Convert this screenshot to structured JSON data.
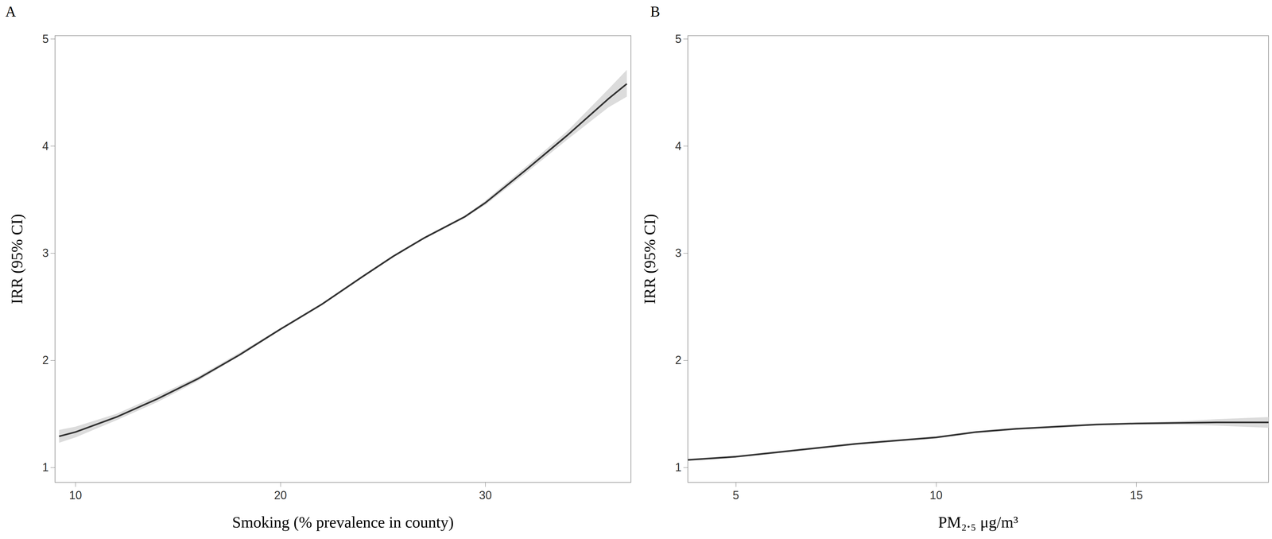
{
  "chart_data": [
    {
      "type": "line",
      "title": "A",
      "x_label": "Smoking (% prevalence in county)",
      "y_label": "IRR (95% CI)",
      "xlim": [
        9.0,
        37.1
      ],
      "xticks": [
        10,
        20,
        30
      ],
      "ylim": [
        0.86,
        5.03
      ],
      "yticks": [
        1,
        2,
        3,
        4,
        5
      ],
      "grid": false,
      "series": [
        {
          "name": "IRR",
          "color": "#333333",
          "x": [
            9.2,
            10,
            12,
            14,
            16,
            18,
            20,
            22,
            24,
            25.5,
            27,
            29,
            30,
            32,
            34,
            36,
            36.9
          ],
          "values": [
            1.29,
            1.33,
            1.47,
            1.64,
            1.83,
            2.05,
            2.29,
            2.52,
            2.78,
            2.97,
            3.14,
            3.34,
            3.47,
            3.78,
            4.1,
            4.44,
            4.58
          ],
          "ci_lower": [
            1.23,
            1.28,
            1.44,
            1.61,
            1.81,
            2.04,
            2.28,
            2.51,
            2.77,
            2.96,
            3.13,
            3.33,
            3.45,
            3.75,
            4.06,
            4.36,
            4.46
          ],
          "ci_upper": [
            1.35,
            1.38,
            1.5,
            1.67,
            1.85,
            2.07,
            2.3,
            2.53,
            2.79,
            2.98,
            3.15,
            3.35,
            3.49,
            3.81,
            4.14,
            4.53,
            4.71
          ],
          "ci_color": "#dcdcdc"
        }
      ]
    },
    {
      "type": "line",
      "title": "B",
      "x_label": "PM₂.₅ μg/m³",
      "y_label": "IRR (95% CI)",
      "xlim": [
        3.8,
        18.3
      ],
      "xticks": [
        5,
        10,
        15
      ],
      "ylim": [
        0.86,
        5.03
      ],
      "yticks": [
        1,
        2,
        3,
        4,
        5
      ],
      "grid": false,
      "series": [
        {
          "name": "IRR",
          "color": "#333333",
          "x": [
            3.8,
            5,
            6,
            7,
            8,
            9,
            10,
            11,
            12,
            13,
            14,
            15,
            16,
            17,
            18.3
          ],
          "values": [
            1.07,
            1.1,
            1.14,
            1.18,
            1.22,
            1.25,
            1.28,
            1.33,
            1.36,
            1.38,
            1.4,
            1.41,
            1.415,
            1.42,
            1.42
          ],
          "ci_lower": [
            1.06,
            1.09,
            1.13,
            1.17,
            1.21,
            1.24,
            1.27,
            1.32,
            1.35,
            1.37,
            1.39,
            1.4,
            1.4,
            1.39,
            1.37
          ],
          "ci_upper": [
            1.08,
            1.11,
            1.15,
            1.19,
            1.23,
            1.26,
            1.29,
            1.34,
            1.37,
            1.39,
            1.41,
            1.42,
            1.43,
            1.45,
            1.47
          ],
          "ci_color": "#dcdcdc"
        }
      ]
    }
  ]
}
